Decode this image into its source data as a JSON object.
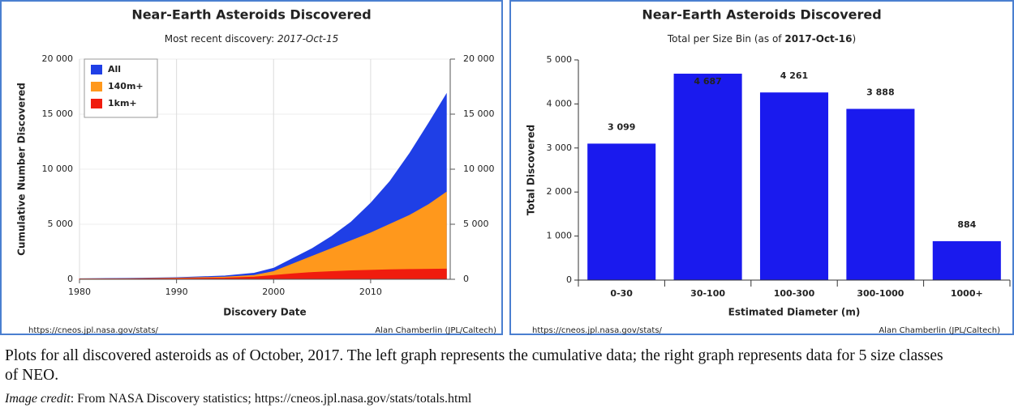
{
  "chart_data": [
    {
      "type": "area",
      "title": "Near-Earth Asteroids Discovered",
      "subtitle": "Most recent discovery:",
      "subtitle_date": "2017-Oct-15",
      "x_label": "Discovery Date",
      "y_label": "Cumulative Number Discovered",
      "source": "https://cneos.jpl.nasa.gov/stats/",
      "credit": "Alan Chamberlin (JPL/Caltech)",
      "x": [
        1980,
        1985,
        1990,
        1995,
        1998,
        2000,
        2002,
        2004,
        2006,
        2008,
        2010,
        2012,
        2014,
        2016,
        2017.8
      ],
      "series": [
        {
          "name": "All",
          "color": "#1f3fe6",
          "values": [
            50,
            80,
            150,
            300,
            550,
            1000,
            1900,
            2800,
            3900,
            5200,
            6900,
            8900,
            11400,
            14200,
            16800
          ]
        },
        {
          "name": "140m+",
          "color": "#ff981c",
          "values": [
            30,
            50,
            100,
            200,
            350,
            700,
            1400,
            2100,
            2800,
            3500,
            4200,
            5000,
            5800,
            6800,
            7900
          ]
        },
        {
          "name": "1km+",
          "color": "#f01c0e",
          "values": [
            20,
            30,
            60,
            110,
            200,
            350,
            500,
            620,
            700,
            770,
            820,
            860,
            890,
            910,
            930
          ]
        }
      ],
      "xlim": [
        1980,
        2018.2
      ],
      "xticks": [
        1980,
        1990,
        2000,
        2010
      ],
      "ylim": [
        0,
        20000
      ],
      "yticks": [
        0,
        {
          "value": 5000,
          "label": "5 000"
        },
        {
          "value": 10000,
          "label": "10 000"
        },
        {
          "value": 15000,
          "label": "15 000"
        },
        {
          "value": 20000,
          "label": "20 000"
        }
      ],
      "y2lim": [
        0,
        20000
      ],
      "y2ticks": [
        0,
        {
          "value": 5000,
          "label": "5 000"
        },
        {
          "value": 10000,
          "label": "10 000"
        },
        {
          "value": 15000,
          "label": "15 000"
        },
        {
          "value": 20000,
          "label": "20 000"
        }
      ],
      "grid": true,
      "legend": "top-left"
    },
    {
      "type": "bar",
      "title": "Near-Earth Asteroids Discovered",
      "subtitle": "Total per Size Bin (as of",
      "subtitle_date": "2017-Oct-16",
      "subtitle_end": ")",
      "x_label": "Estimated Diameter (m)",
      "y_label": "Total Discovered",
      "source": "https://cneos.jpl.nasa.gov/stats/",
      "credit": "Alan Chamberlin (JPL/Caltech)",
      "categories": [
        "0-30",
        "30-100",
        "100-300",
        "300-1000",
        "1000+"
      ],
      "values": [
        3099,
        4687,
        4261,
        3888,
        884
      ],
      "value_labels": [
        "3 099",
        "4 687",
        "4 261",
        "3 888",
        "884"
      ],
      "color": "#1a1aee",
      "ylim": [
        0,
        5000
      ],
      "yticks": [
        0,
        {
          "value": 1000,
          "label": "1 000"
        },
        {
          "value": 2000,
          "label": "2 000"
        },
        {
          "value": 3000,
          "label": "3 000"
        },
        {
          "value": 4000,
          "label": "4 000"
        },
        {
          "value": 5000,
          "label": "5 000"
        }
      ],
      "grid": false
    }
  ],
  "caption": "Plots for all discovered asteroids as of October, 2017. The left graph represents the cumulative data; the right graph represents data for 5 size classes of NEO.",
  "credit_label": "Image credit",
  "credit_text": ": From NASA Discovery statistics; https://cneos.jpl.nasa.gov/stats/totals.html"
}
